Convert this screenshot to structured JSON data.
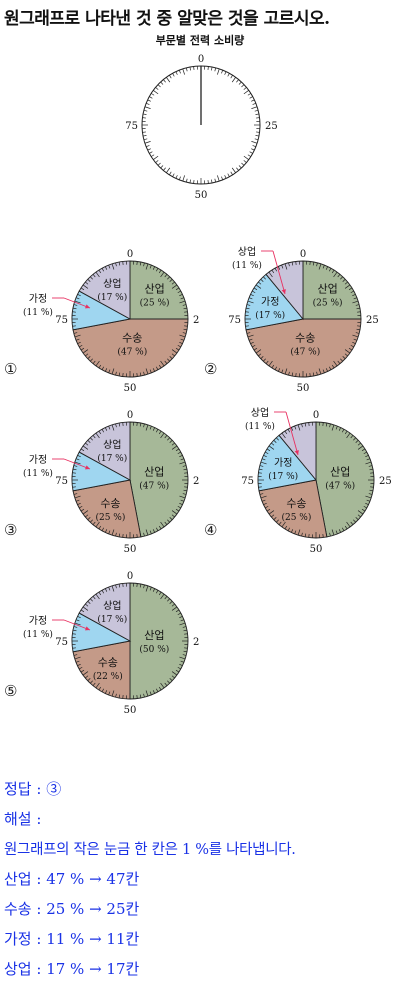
{
  "question": "원그래프로 나타낸 것 중 알맞은 것을 고르시오.",
  "chart_title": "부문별 전력 소비량",
  "scale_labels": [
    "0",
    "25",
    "50",
    "75"
  ],
  "colors": {
    "industry": "#a6b898",
    "transport": "#c49a88",
    "home": "#9fd6f0",
    "commerce": "#c8c4da",
    "arrow": "#e83060"
  },
  "charts": [
    {
      "choice": "①",
      "slices": [
        {
          "name": "산업",
          "pct_label": "(25 %)",
          "value": 25
        },
        {
          "name": "수송",
          "pct_label": "(47 %)",
          "value": 47
        },
        {
          "name": "가정",
          "pct_label": "(11 %)",
          "value": 11
        },
        {
          "name": "상업",
          "pct_label": "(17 %)",
          "value": 17
        }
      ]
    },
    {
      "choice": "②",
      "slices": [
        {
          "name": "산업",
          "pct_label": "(25 %)",
          "value": 25
        },
        {
          "name": "수송",
          "pct_label": "(47 %)",
          "value": 47
        },
        {
          "name": "가정",
          "pct_label": "(17 %)",
          "value": 17
        },
        {
          "name": "상업",
          "pct_label": "(11 %)",
          "value": 11
        }
      ]
    },
    {
      "choice": "③",
      "slices": [
        {
          "name": "산업",
          "pct_label": "(47 %)",
          "value": 47
        },
        {
          "name": "수송",
          "pct_label": "(25 %)",
          "value": 25
        },
        {
          "name": "가정",
          "pct_label": "(11 %)",
          "value": 11
        },
        {
          "name": "상업",
          "pct_label": "(17 %)",
          "value": 17
        }
      ]
    },
    {
      "choice": "④",
      "slices": [
        {
          "name": "산업",
          "pct_label": "(47 %)",
          "value": 47
        },
        {
          "name": "수송",
          "pct_label": "(25 %)",
          "value": 25
        },
        {
          "name": "가정",
          "pct_label": "(17 %)",
          "value": 17
        },
        {
          "name": "상업",
          "pct_label": "(11 %)",
          "value": 11
        }
      ]
    },
    {
      "choice": "⑤",
      "slices": [
        {
          "name": "산업",
          "pct_label": "(50 %)",
          "value": 50
        },
        {
          "name": "수송",
          "pct_label": "(22 %)",
          "value": 22
        },
        {
          "name": "가정",
          "pct_label": "(11 %)",
          "value": 11
        },
        {
          "name": "상업",
          "pct_label": "(17 %)",
          "value": 17
        }
      ]
    }
  ],
  "answer": {
    "line1": "정답 : ③",
    "line2": "해설 :",
    "line3": "원그래프의 작은 눈금 한 칸은 1 %를 나타냅니다.",
    "line4": "산업 : 47 % → 47칸",
    "line5": "수송 : 25 % → 25칸",
    "line6": "가정 : 11 % → 11칸",
    "line7": "상업 : 17 % → 17칸"
  }
}
